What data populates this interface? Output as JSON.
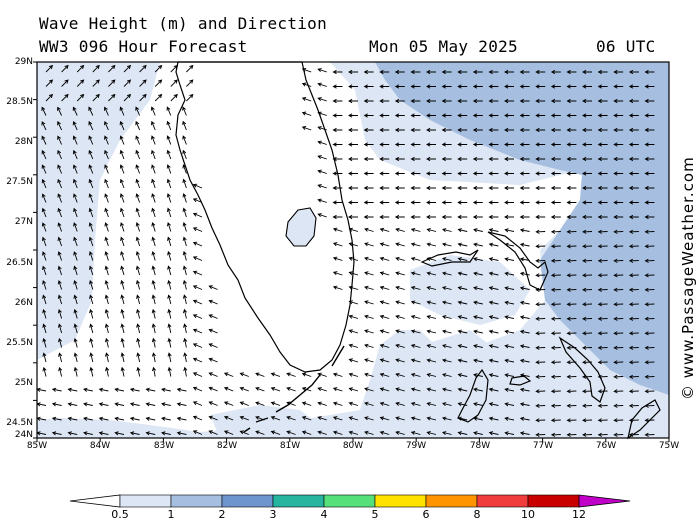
{
  "header": {
    "title": "Wave Height (m) and Direction",
    "subtitle": "WW3 096 Hour Forecast",
    "date": "Mon 05 May 2025",
    "time": "06 UTC"
  },
  "credit": "© www.PassageWeather.com",
  "map": {
    "lat_labels": [
      "29N",
      "28.5N",
      "28N",
      "27.5N",
      "27N",
      "26.5N",
      "26N",
      "25.5N",
      "25N",
      "24.5N",
      "24N"
    ],
    "lon_labels": [
      "85W",
      "84W",
      "83W",
      "82W",
      "81W",
      "80W",
      "79W",
      "78W",
      "77W",
      "76W",
      "75W"
    ],
    "lat_range": [
      24,
      29
    ],
    "lon_range": [
      -85,
      -75
    ]
  },
  "colorbar": {
    "labels": [
      "0.5",
      "1",
      "2",
      "3",
      "4",
      "5",
      "6",
      "8",
      "10",
      "12"
    ],
    "colors": [
      "#dde6f4",
      "#a6bfe0",
      "#6f95cf",
      "#27b5a0",
      "#55e07a",
      "#ffe200",
      "#ff9400",
      "#f03c3c",
      "#c80000",
      "#c000c8"
    ]
  },
  "wave_colors": {
    "lowest": "#ffffff",
    "band_0_5_1": "#dde6f4",
    "band_1_2": "#a6bfe0"
  }
}
